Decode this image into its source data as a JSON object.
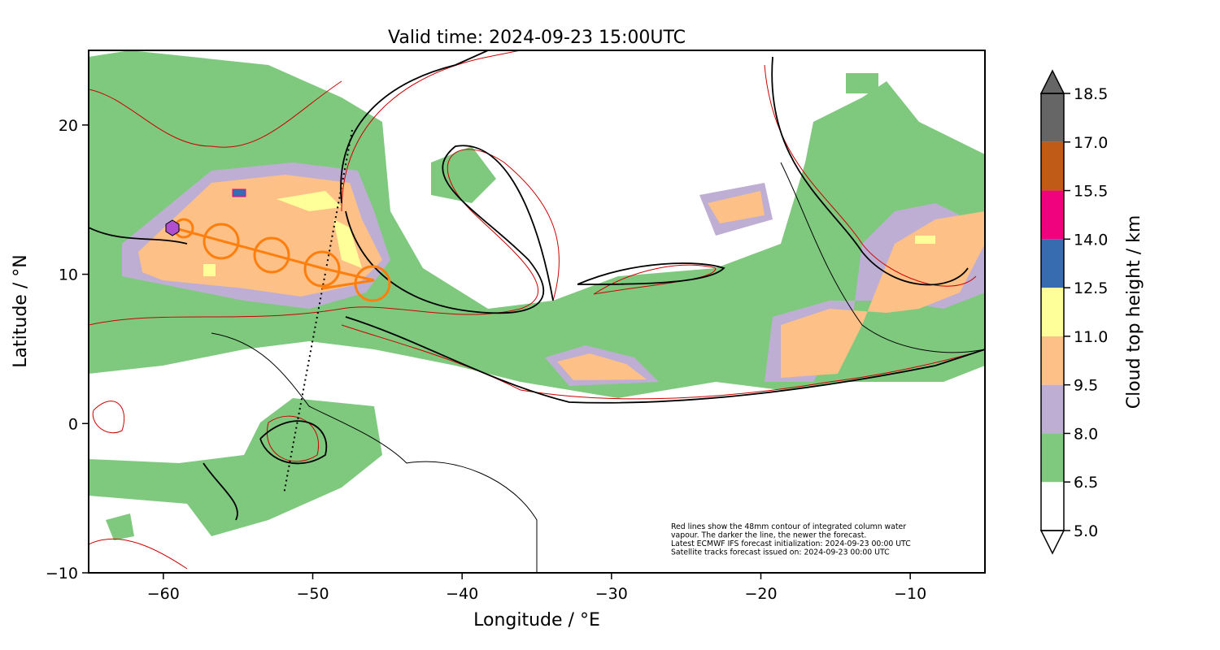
{
  "chart_data": {
    "type": "map",
    "title": "Valid time: 2024-09-23 15:00UTC",
    "x_label": "Longitude / °E",
    "y_label": "Latitude / °N",
    "xlim": [
      -65,
      -5
    ],
    "ylim": [
      -10,
      25
    ],
    "xticks": [
      {
        "value": -60,
        "label": "−60"
      },
      {
        "value": -50,
        "label": "−50"
      },
      {
        "value": -40,
        "label": "−40"
      },
      {
        "value": -30,
        "label": "−30"
      },
      {
        "value": -20,
        "label": "−20"
      },
      {
        "value": -10,
        "label": "−10"
      }
    ],
    "yticks": [
      {
        "value": -10,
        "label": "−10"
      },
      0,
      10,
      20
    ],
    "annotation": [
      "Red lines show the 48mm contour of integrated column water",
      "vapour. The darker the line, the newer the forecast.",
      "Latest ECMWF IFS forecast initialization: 2024-09-23 00:00 UTC",
      "Satellite tracks forecast issued on: 2024-09-23 00:00 UTC"
    ],
    "colorbar": {
      "label": "Cloud top height / km",
      "ticks": [
        {
          "value": 5,
          "label": "5.0"
        },
        6.5,
        {
          "value": 8,
          "label": "8.0"
        },
        9.5,
        {
          "value": 11,
          "label": "11.0"
        },
        12.5,
        {
          "value": 14,
          "label": "14.0"
        },
        15.5,
        {
          "value": 17,
          "label": "17.0"
        },
        18.5
      ],
      "colors": [
        "#ffffff",
        "#7fc97f",
        "#beaed4",
        "#fdc086",
        "#ffff99",
        "#386cb0",
        "#f0027f",
        "#bf5b17",
        "#666666"
      ]
    }
  }
}
